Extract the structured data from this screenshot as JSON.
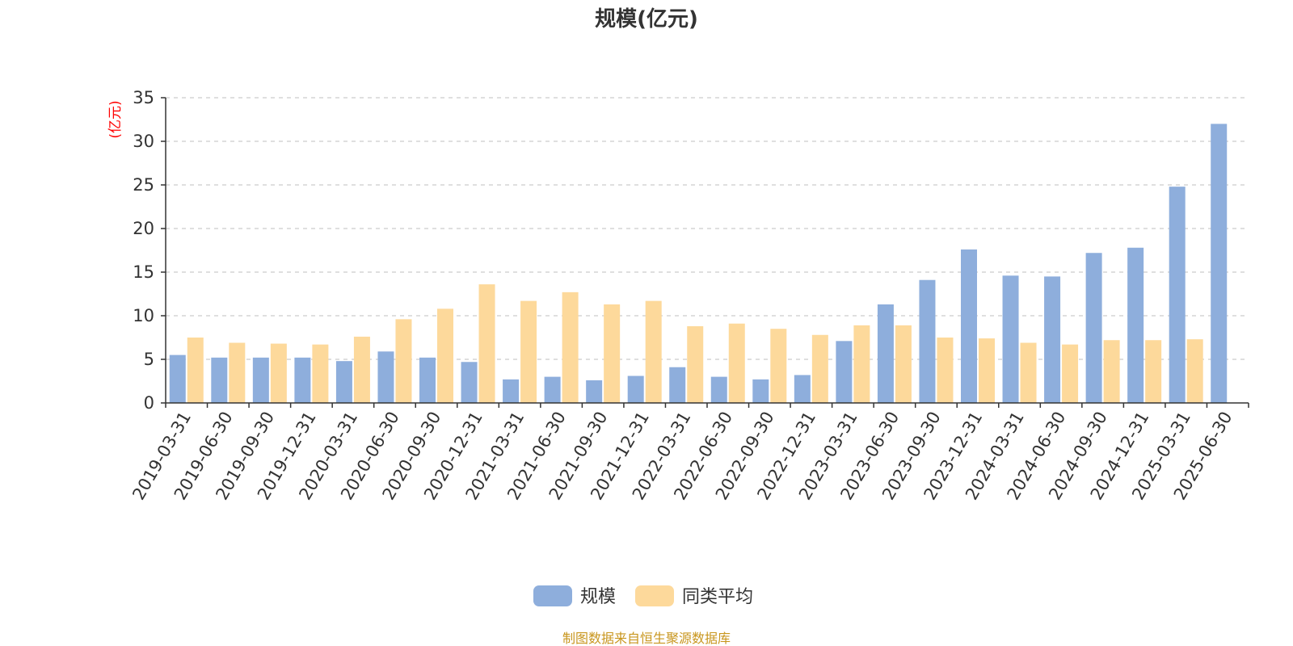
{
  "colors": {
    "series_primary": "#8eaedc",
    "series_secondary": "#fdd99b",
    "axis": "#333333",
    "grid": "#cccccc",
    "unit_label": "#ff0000",
    "source": "#c8961e"
  },
  "source_note": "制图数据来自恒生聚源数据库",
  "chart_data": {
    "type": "bar",
    "title": "规模(亿元)",
    "ylabel": "(亿元)",
    "xlabel": "",
    "ylim": [
      0,
      35
    ],
    "yticks": [
      0,
      5,
      10,
      15,
      20,
      25,
      30,
      35
    ],
    "grid": true,
    "legend_position": "bottom-center",
    "categories": [
      "2019-03-31",
      "2019-06-30",
      "2019-09-30",
      "2019-12-31",
      "2020-03-31",
      "2020-06-30",
      "2020-09-30",
      "2020-12-31",
      "2021-03-31",
      "2021-06-30",
      "2021-09-30",
      "2021-12-31",
      "2022-03-31",
      "2022-06-30",
      "2022-09-30",
      "2022-12-31",
      "2023-03-31",
      "2023-06-30",
      "2023-09-30",
      "2023-12-31",
      "2024-03-31",
      "2024-06-30",
      "2024-09-30",
      "2024-12-31",
      "2025-03-31",
      "2025-06-30"
    ],
    "series": [
      {
        "name": "规模",
        "values": [
          5.5,
          5.2,
          5.2,
          5.2,
          4.8,
          5.9,
          5.2,
          4.7,
          2.7,
          3.0,
          2.6,
          3.1,
          4.1,
          3.0,
          2.7,
          3.2,
          7.1,
          11.3,
          14.1,
          17.6,
          14.6,
          14.5,
          17.2,
          17.8,
          24.8,
          32.0
        ]
      },
      {
        "name": "同类平均",
        "values": [
          7.5,
          6.9,
          6.8,
          6.7,
          7.6,
          9.6,
          10.8,
          13.6,
          11.7,
          12.7,
          11.3,
          11.7,
          8.8,
          9.1,
          8.5,
          7.8,
          8.9,
          8.9,
          7.5,
          7.4,
          6.9,
          6.7,
          7.2,
          7.2,
          7.3,
          null
        ]
      }
    ]
  }
}
